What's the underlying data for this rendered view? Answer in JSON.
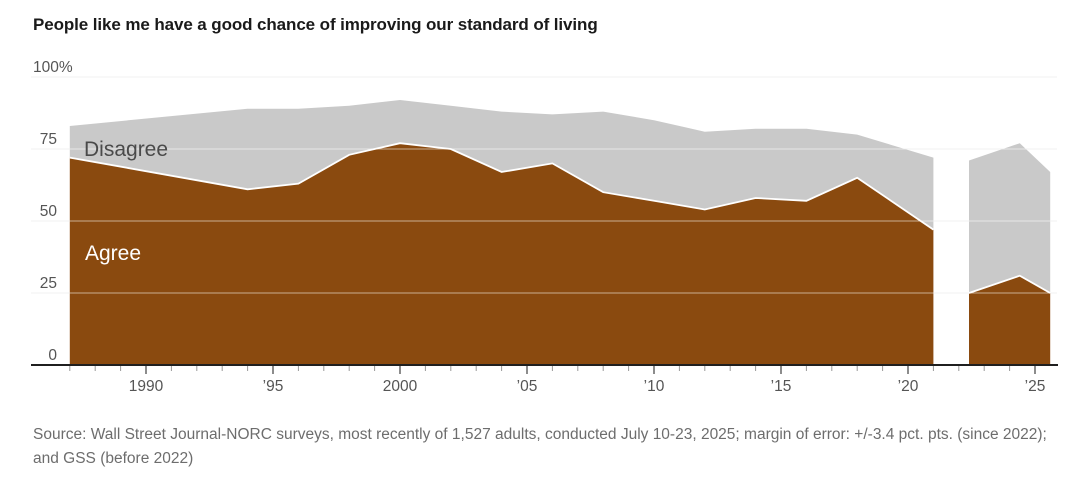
{
  "title": "People like me have a good chance of improving our standard of living",
  "source": "Source: Wall Street Journal-NORC surveys, most recently of 1,527 adults, conducted July 10-23, 2025; margin of error: +/-3.4 pct. pts. (since 2022); and GSS (before 2022)",
  "chart_data": {
    "type": "area",
    "stacked": true,
    "title": "People like me have a good chance of improving our standard of living",
    "unit": "%",
    "ylim": [
      0,
      100
    ],
    "x_range": [
      1987,
      2025.6
    ],
    "grid": true,
    "y_ticks": [
      {
        "value": 100,
        "label": "100%"
      },
      {
        "value": 75,
        "label": "75"
      },
      {
        "value": 50,
        "label": "50"
      },
      {
        "value": 25,
        "label": "25"
      },
      {
        "value": 0,
        "label": "0"
      }
    ],
    "x_ticks": [
      {
        "value": 1990,
        "label": "1990"
      },
      {
        "value": 1995,
        "label": "’95"
      },
      {
        "value": 2000,
        "label": "2000"
      },
      {
        "value": 2005,
        "label": "’05"
      },
      {
        "value": 2010,
        "label": "’10"
      },
      {
        "value": 2015,
        "label": "’15"
      },
      {
        "value": 2020,
        "label": "’20"
      },
      {
        "value": 2025,
        "label": "’25"
      }
    ],
    "series_labels": {
      "agree": "Agree",
      "disagree": "Disagree"
    },
    "colors": {
      "agree": "#8a4a0f",
      "disagree": "#c9c9c9",
      "grid": "#e3e3e3",
      "axis": "#1f1f1f",
      "tick_label": "#555555",
      "disagree_label_text": "#4a4a4a",
      "agree_label_text": "#ffffff"
    },
    "segments": [
      {
        "name": "GSS (before 2022)",
        "x": [
          1987,
          1994,
          1996,
          1998,
          2000,
          2002,
          2004,
          2006,
          2008,
          2010,
          2012,
          2014,
          2016,
          2018,
          2021
        ],
        "agree": [
          72,
          61,
          63,
          73,
          77,
          75,
          67,
          70,
          60,
          57,
          54,
          58,
          57,
          65,
          47
        ],
        "disagree": [
          11,
          28,
          26,
          17,
          15,
          15,
          21,
          17,
          28,
          28,
          27,
          24,
          25,
          15,
          25
        ]
      },
      {
        "name": "WSJ-NORC surveys (since 2022)",
        "x": [
          2022.4,
          2024.4,
          2025.6
        ],
        "agree": [
          25,
          31,
          25
        ],
        "disagree": [
          46,
          46,
          42
        ]
      }
    ]
  }
}
